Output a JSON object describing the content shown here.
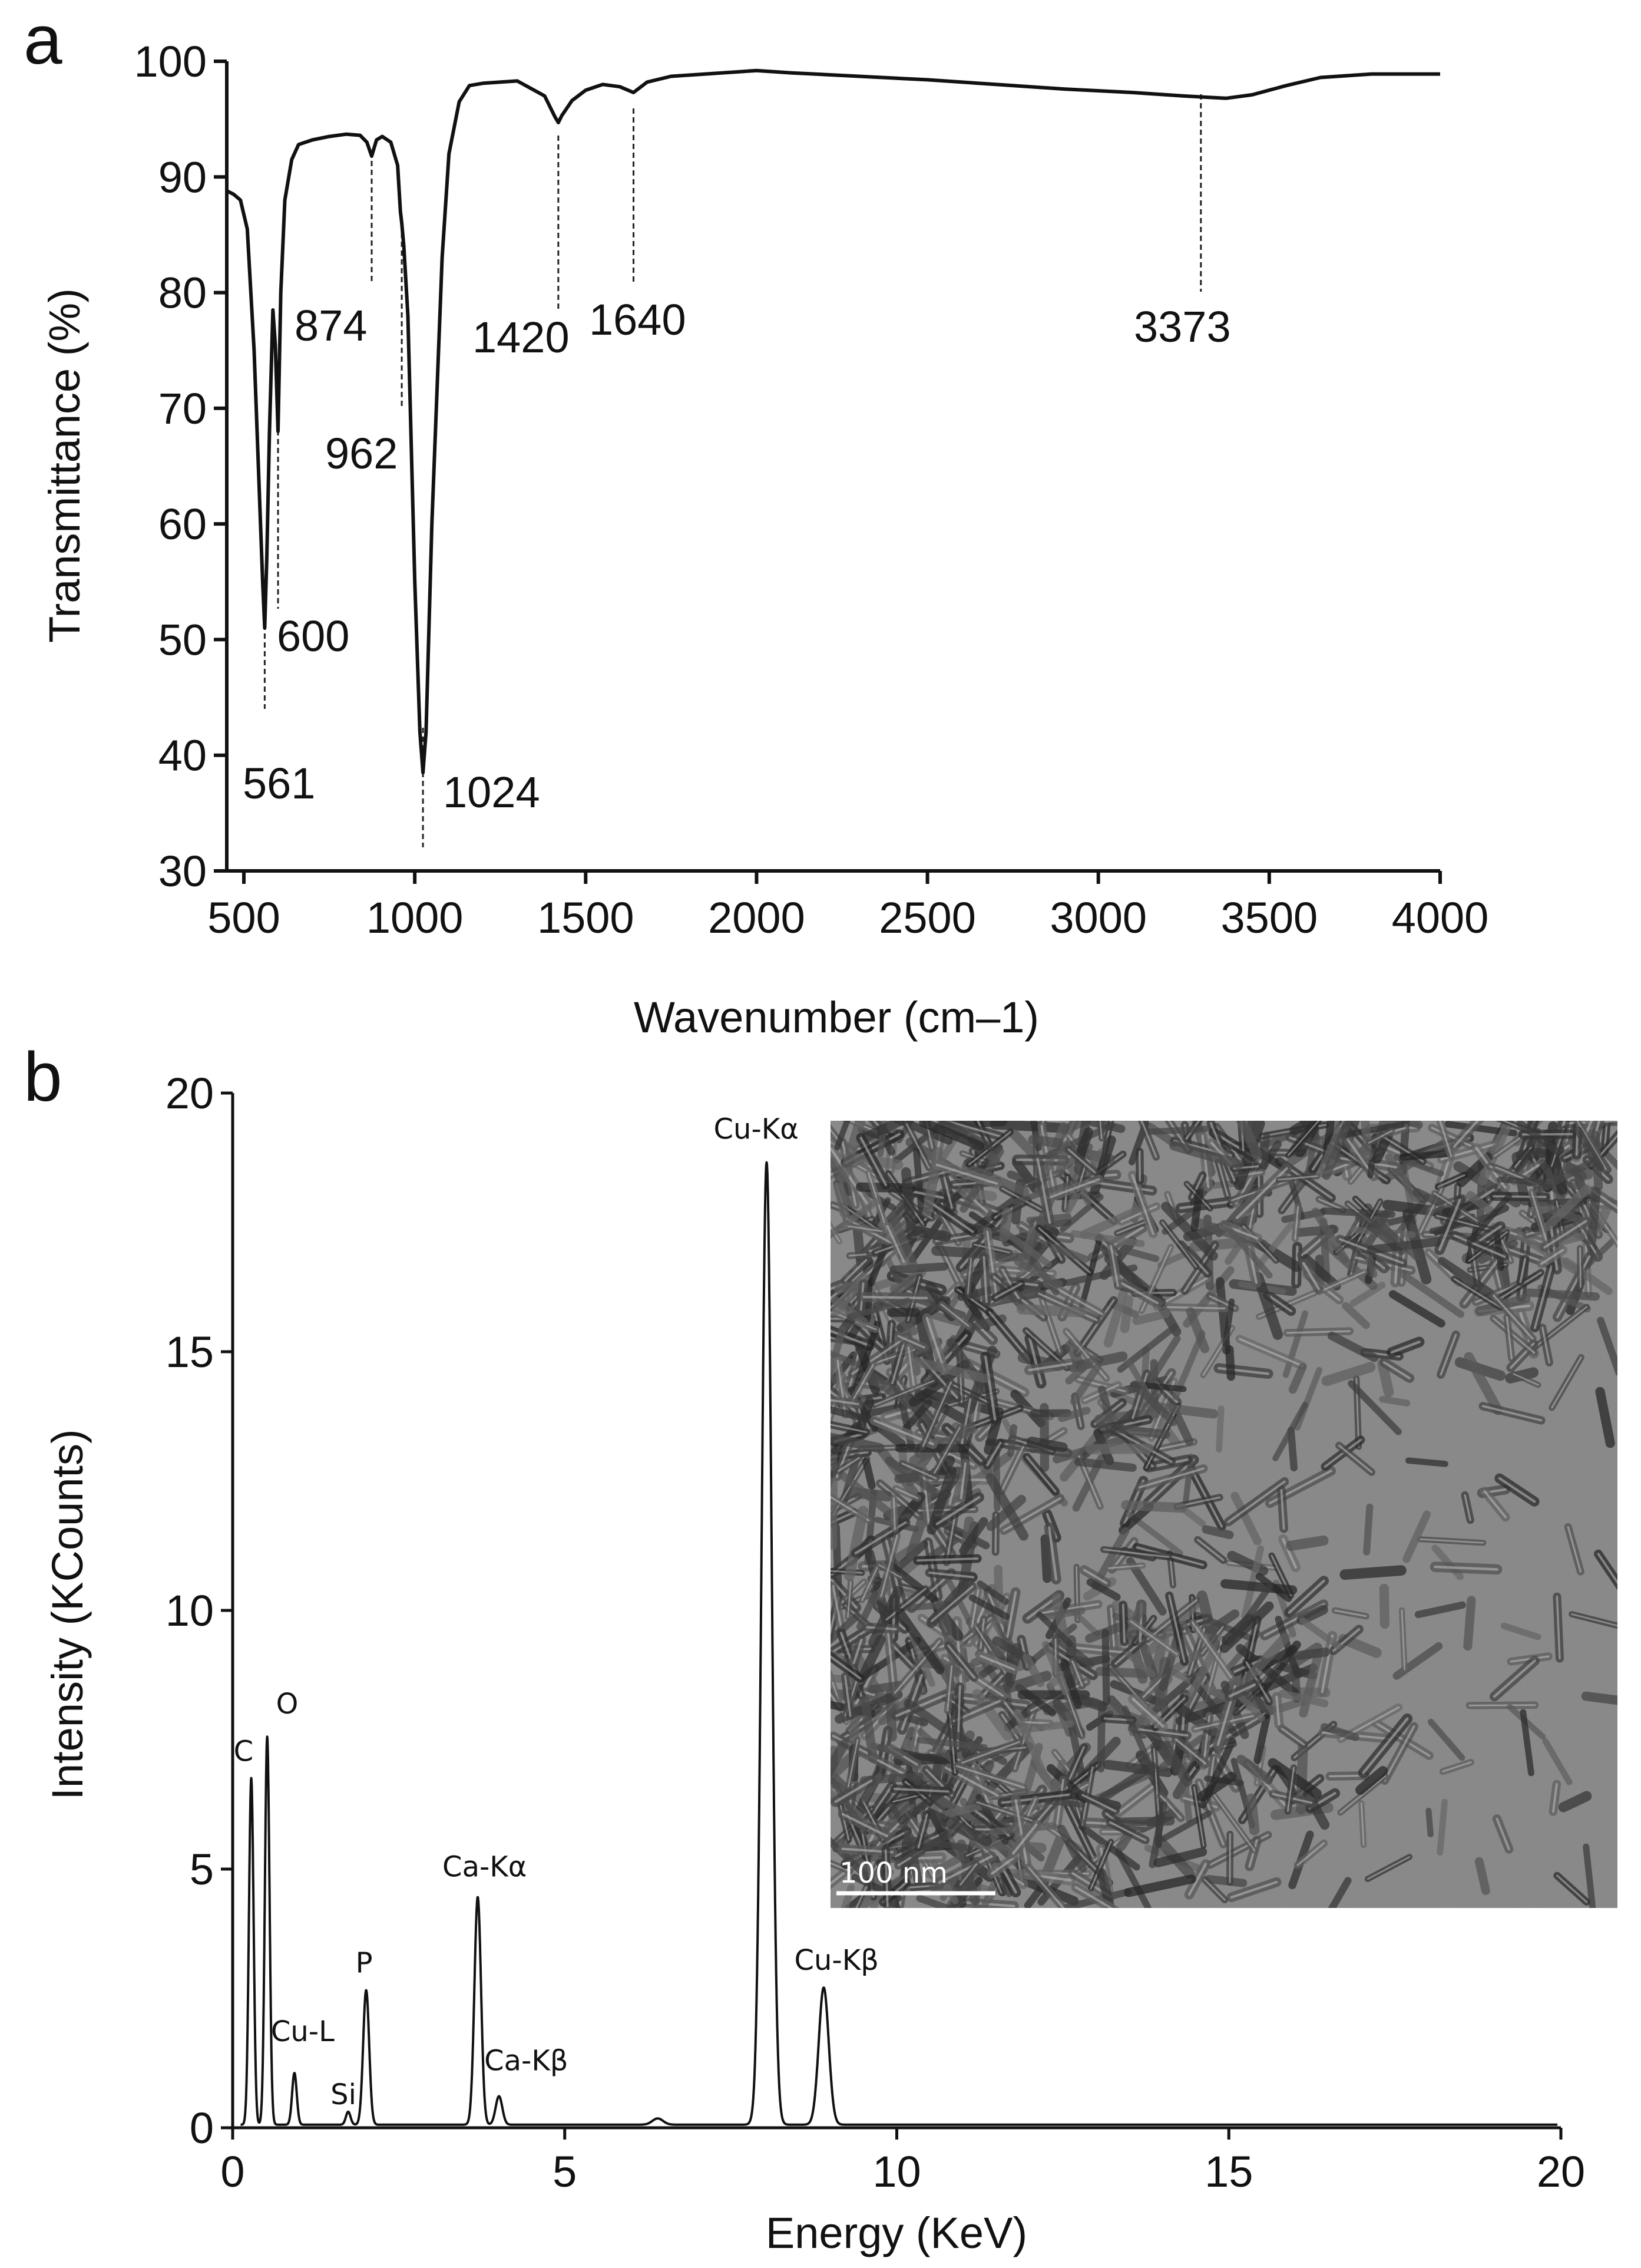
{
  "panel_a": {
    "letter": "a"
  },
  "panel_b": {
    "letter": "b"
  },
  "chart_data": [
    {
      "type": "line",
      "xlabel": "Wavenumber (cm–1)",
      "ylabel": "Transmittance (%)",
      "xlim": [
        450,
        4000
      ],
      "ylim": [
        30,
        100
      ],
      "xticks": [
        500,
        1000,
        1500,
        2000,
        2500,
        3000,
        3500,
        4000
      ],
      "yticks": [
        30,
        40,
        50,
        60,
        70,
        80,
        90,
        100
      ],
      "grid": false,
      "series": [
        {
          "x": [
            450,
            470,
            490,
            510,
            530,
            545,
            555,
            561,
            567,
            575,
            585,
            592,
            600,
            608,
            620,
            640,
            660,
            700,
            750,
            800,
            840,
            860,
            874,
            888,
            905,
            930,
            950,
            958,
            962,
            968,
            980,
            1000,
            1015,
            1024,
            1033,
            1050,
            1080,
            1100,
            1130,
            1160,
            1200,
            1300,
            1380,
            1410,
            1420,
            1430,
            1460,
            1500,
            1550,
            1600,
            1640,
            1680,
            1750,
            1850,
            1950,
            2000,
            2100,
            2300,
            2500,
            2700,
            2900,
            3100,
            3250,
            3373,
            3450,
            3550,
            3650,
            3800,
            4000
          ],
          "y": [
            88.8,
            88.5,
            88.0,
            85.5,
            75.0,
            63.0,
            55.0,
            51.0,
            57.0,
            68.0,
            78.5,
            75.5,
            68.0,
            80.0,
            88.0,
            91.5,
            92.8,
            93.2,
            93.5,
            93.7,
            93.6,
            93.0,
            91.8,
            93.2,
            93.5,
            93.0,
            91.0,
            87.0,
            86.0,
            84.0,
            78.0,
            55.0,
            42.0,
            38.5,
            42.0,
            60.0,
            83.0,
            92.0,
            96.5,
            97.9,
            98.1,
            98.3,
            97.0,
            95.2,
            94.7,
            95.3,
            96.6,
            97.5,
            98.0,
            97.8,
            97.3,
            98.2,
            98.7,
            98.9,
            99.1,
            99.2,
            99.0,
            98.7,
            98.4,
            98.0,
            97.6,
            97.3,
            97.0,
            96.8,
            97.1,
            97.9,
            98.6,
            98.9,
            98.9
          ]
        }
      ],
      "annotations": [
        {
          "label": "561",
          "x": 561
        },
        {
          "label": "600",
          "x": 600
        },
        {
          "label": "874",
          "x": 874
        },
        {
          "label": "962",
          "x": 962
        },
        {
          "label": "1024",
          "x": 1024
        },
        {
          "label": "1420",
          "x": 1420
        },
        {
          "label": "1640",
          "x": 1640
        },
        {
          "label": "3373",
          "x": 3300
        }
      ]
    },
    {
      "type": "line",
      "xlabel": "Energy (KeV)",
      "ylabel": "Intensity (KCounts)",
      "xlim": [
        0,
        20
      ],
      "ylim": [
        0,
        20
      ],
      "xticks": [
        0,
        5,
        10,
        15,
        20
      ],
      "yticks": [
        0,
        5,
        10,
        15,
        20
      ],
      "grid": false,
      "baseline": 0.06,
      "peaks": [
        {
          "label": "C",
          "x": 0.28,
          "height": 6.7,
          "width": 0.035
        },
        {
          "label": "O",
          "x": 0.52,
          "height": 7.5,
          "width": 0.035
        },
        {
          "label": "Cu-L",
          "x": 0.93,
          "height": 1.0,
          "width": 0.035
        },
        {
          "label": "Si",
          "x": 1.74,
          "height": 0.25,
          "width": 0.035
        },
        {
          "label": "P",
          "x": 2.01,
          "height": 2.6,
          "width": 0.045
        },
        {
          "label": "Ca-Kα",
          "x": 3.69,
          "height": 4.4,
          "width": 0.05
        },
        {
          "label": "Ca-Kβ",
          "x": 4.01,
          "height": 0.55,
          "width": 0.05
        },
        {
          "label": "Cu-Kα",
          "x": 8.04,
          "height": 18.6,
          "width": 0.075
        },
        {
          "label": "Cu-Kβ",
          "x": 8.9,
          "height": 2.65,
          "width": 0.075
        }
      ],
      "inset": {
        "scale_bar_label": "100 nm"
      }
    }
  ]
}
